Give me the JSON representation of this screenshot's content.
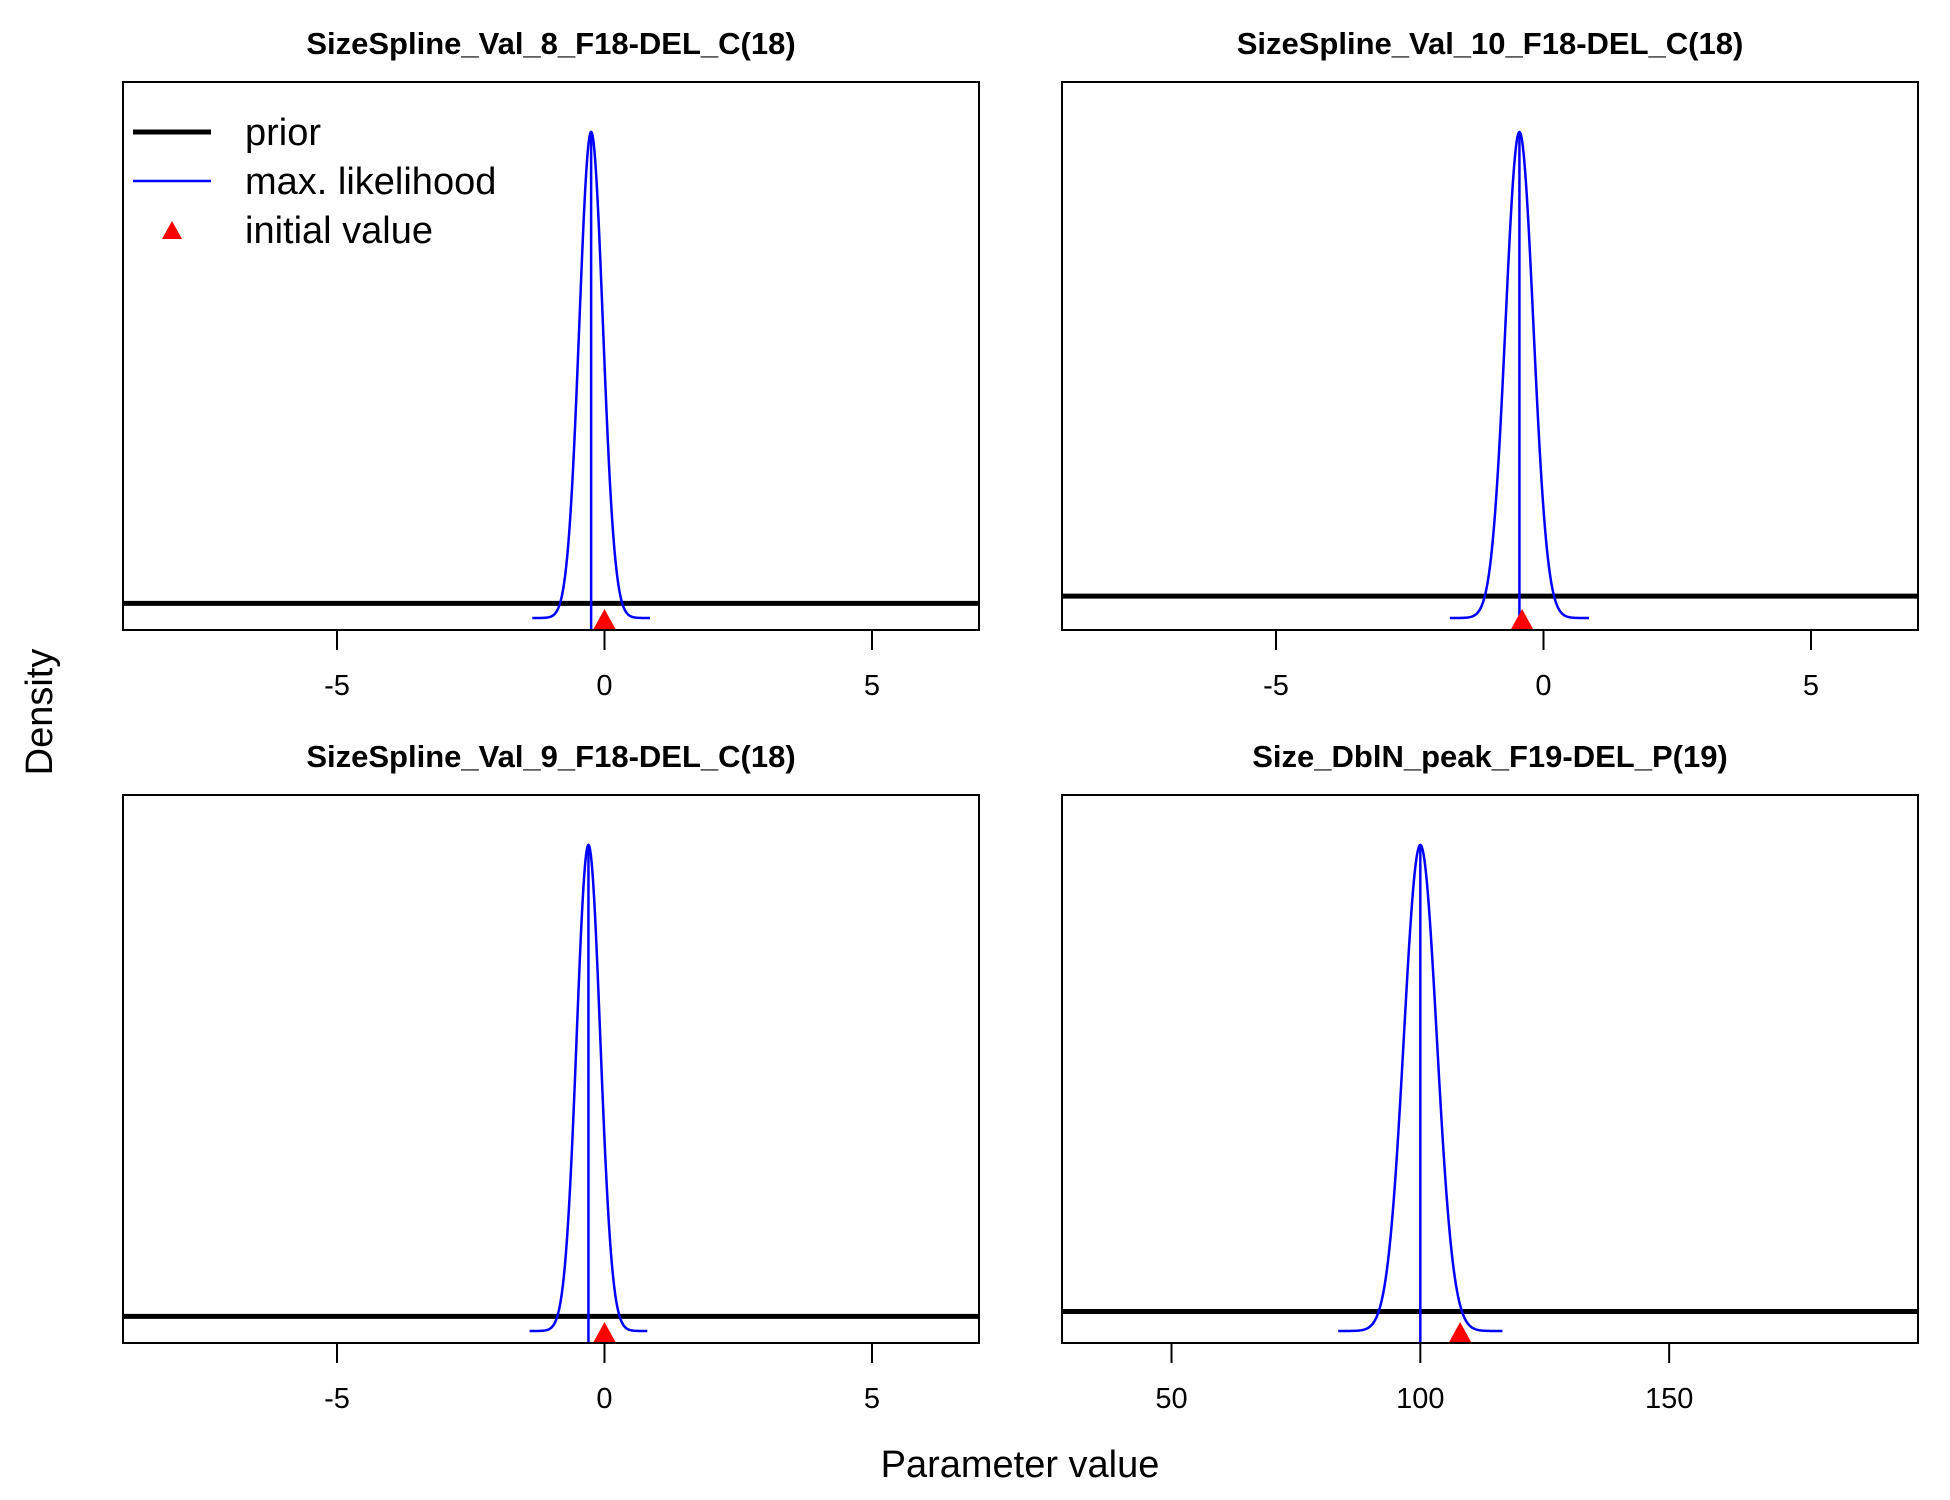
{
  "figure": {
    "xlabel": "Parameter value",
    "ylabel": "Density"
  },
  "legend": {
    "placement": "top-left of first panel",
    "items": [
      {
        "label": "prior",
        "kind": "line",
        "color": "#000000"
      },
      {
        "label": "max. likelihood",
        "kind": "line",
        "color": "#0000ff"
      },
      {
        "label": "initial value",
        "kind": "triangle",
        "color": "#ff0000"
      }
    ]
  },
  "chart_data": [
    {
      "type": "line",
      "title": "SizeSpline_Val_8_F18-DEL_C(18)",
      "xlim": [
        -9,
        7
      ],
      "xticks": [
        -5,
        0,
        5
      ],
      "prior_level": 0.03,
      "ml_mean": -0.25,
      "ml_sd": 0.22,
      "initial_value": 0,
      "grid": false
    },
    {
      "type": "line",
      "title": "SizeSpline_Val_10_F18-DEL_C(18)",
      "xlim": [
        -9,
        7
      ],
      "xticks": [
        -5,
        0,
        5
      ],
      "prior_level": 0.045,
      "ml_mean": -0.45,
      "ml_sd": 0.26,
      "initial_value": -0.4,
      "grid": false
    },
    {
      "type": "line",
      "title": "SizeSpline_Val_9_F18-DEL_C(18)",
      "xlim": [
        -9,
        7
      ],
      "xticks": [
        -5,
        0,
        5
      ],
      "prior_level": 0.03,
      "ml_mean": -0.3,
      "ml_sd": 0.22,
      "initial_value": 0,
      "grid": false
    },
    {
      "type": "line",
      "title": "Size_DblN_peak_F19-DEL_P(19)",
      "xlim": [
        28,
        200
      ],
      "xticks": [
        50,
        100,
        150
      ],
      "prior_level": 0.04,
      "ml_mean": 100,
      "ml_sd": 3.3,
      "initial_value": 108,
      "grid": false
    }
  ]
}
